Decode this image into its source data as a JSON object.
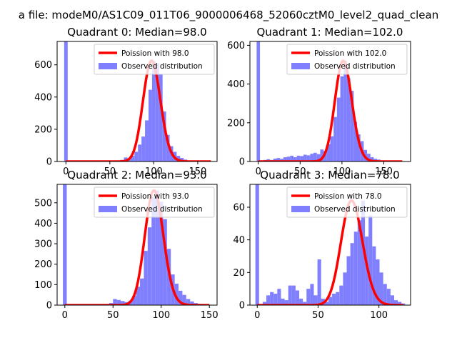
{
  "figure_title": "a file: modeM0/AS1C09_011T06_9000006468_52060cztM0_level2_quad_clean",
  "colors": {
    "histogram": "#8080ff",
    "model": "#ff0000",
    "axes": "#000000",
    "legend_frame": "#cccccc"
  },
  "chart_data": [
    {
      "type": "bar",
      "title": "Quadrant 0: Median=98.0",
      "median": 98.0,
      "xlim": [
        -10,
        172
      ],
      "ylim": [
        0,
        745
      ],
      "xticks": [
        0,
        50,
        100,
        150
      ],
      "yticks": [
        0,
        200,
        400,
        600
      ],
      "xlabel": "",
      "ylabel": "",
      "legend": {
        "position": "top-right",
        "entries": [
          "Poission with 98.0",
          "Observed distribution"
        ]
      },
      "series": [
        {
          "name": "Observed distribution",
          "kind": "histogram",
          "bin_width": 4,
          "bars": [
            [
              -2,
              745
            ],
            [
              30,
              2
            ],
            [
              58,
              5
            ],
            [
              62,
              10
            ],
            [
              66,
              25
            ],
            [
              70,
              20
            ],
            [
              74,
              35
            ],
            [
              78,
              60
            ],
            [
              82,
              105
            ],
            [
              86,
              155
            ],
            [
              90,
              255
            ],
            [
              94,
              445
            ],
            [
              98,
              625
            ],
            [
              102,
              610
            ],
            [
              106,
              540
            ],
            [
              110,
              310
            ],
            [
              114,
              165
            ],
            [
              118,
              95
            ],
            [
              122,
              60
            ],
            [
              126,
              35
            ],
            [
              130,
              22
            ],
            [
              134,
              12
            ],
            [
              138,
              6
            ],
            [
              142,
              3
            ]
          ]
        },
        {
          "name": "Poission with 98.0",
          "kind": "line",
          "mean": 98.0,
          "x_range": [
            0,
            165
          ]
        }
      ]
    },
    {
      "type": "bar",
      "title": "Quadrant 1: Median=102.0",
      "median": 102.0,
      "xlim": [
        -10,
        182
      ],
      "ylim": [
        0,
        620
      ],
      "xticks": [
        0,
        50,
        100,
        150
      ],
      "yticks": [
        0,
        200,
        400,
        600
      ],
      "xlabel": "",
      "ylabel": "",
      "legend": {
        "position": "top-right",
        "entries": [
          "Poission with 102.0",
          "Observed distribution"
        ]
      },
      "series": [
        {
          "name": "Observed distribution",
          "kind": "histogram",
          "bin_width": 4,
          "bars": [
            [
              -2,
              620
            ],
            [
              6,
              8
            ],
            [
              10,
              12
            ],
            [
              14,
              8
            ],
            [
              18,
              15
            ],
            [
              22,
              18
            ],
            [
              26,
              14
            ],
            [
              30,
              22
            ],
            [
              34,
              25
            ],
            [
              38,
              30
            ],
            [
              42,
              22
            ],
            [
              46,
              30
            ],
            [
              50,
              28
            ],
            [
              54,
              35
            ],
            [
              58,
              32
            ],
            [
              62,
              40
            ],
            [
              66,
              45
            ],
            [
              70,
              38
            ],
            [
              74,
              62
            ],
            [
              78,
              55
            ],
            [
              82,
              90
            ],
            [
              86,
              130
            ],
            [
              90,
              230
            ],
            [
              94,
              330
            ],
            [
              98,
              440
            ],
            [
              102,
              520
            ],
            [
              106,
              430
            ],
            [
              110,
              365
            ],
            [
              114,
              205
            ],
            [
              118,
              140
            ],
            [
              122,
              105
            ],
            [
              126,
              60
            ],
            [
              130,
              40
            ],
            [
              134,
              22
            ],
            [
              138,
              14
            ],
            [
              142,
              10
            ],
            [
              146,
              5
            ]
          ]
        },
        {
          "name": "Poission with 102.0",
          "kind": "line",
          "mean": 102.0,
          "x_range": [
            0,
            172
          ]
        }
      ]
    },
    {
      "type": "bar",
      "title": "Quadrant 2: Median=93.0",
      "median": 93.0,
      "xlim": [
        -8,
        158
      ],
      "ylim": [
        0,
        590
      ],
      "xticks": [
        0,
        50,
        100,
        150
      ],
      "yticks": [
        0,
        100,
        200,
        300,
        400,
        500
      ],
      "xlabel": "",
      "ylabel": "",
      "legend": {
        "position": "top-right",
        "entries": [
          "Poission with 93.0",
          "Observed distribution"
        ]
      },
      "series": [
        {
          "name": "Observed distribution",
          "kind": "histogram",
          "bin_width": 4,
          "bars": [
            [
              -2,
              590
            ],
            [
              46,
              10
            ],
            [
              50,
              30
            ],
            [
              54,
              25
            ],
            [
              58,
              20
            ],
            [
              62,
              15
            ],
            [
              66,
              22
            ],
            [
              70,
              45
            ],
            [
              74,
              90
            ],
            [
              78,
              130
            ],
            [
              82,
              265
            ],
            [
              86,
              380
            ],
            [
              90,
              530
            ],
            [
              94,
              560
            ],
            [
              98,
              505
            ],
            [
              102,
              420
            ],
            [
              106,
              275
            ],
            [
              110,
              150
            ],
            [
              114,
              105
            ],
            [
              118,
              70
            ],
            [
              122,
              50
            ],
            [
              126,
              30
            ],
            [
              130,
              18
            ],
            [
              134,
              10
            ],
            [
              138,
              6
            ]
          ]
        },
        {
          "name": "Poission with 93.0",
          "kind": "line",
          "mean": 93.0,
          "x_range": [
            0,
            150
          ]
        }
      ]
    },
    {
      "type": "bar",
      "title": "Quadrant 3: Median=78.0",
      "median": 78.0,
      "xlim": [
        -6,
        126
      ],
      "ylim": [
        0,
        74
      ],
      "xticks": [
        0,
        50,
        100
      ],
      "yticks": [
        0,
        20,
        40,
        60
      ],
      "xlabel": "",
      "ylabel": "",
      "legend": {
        "position": "top-right",
        "entries": [
          "Poission with 78.0",
          "Observed distribution"
        ]
      },
      "series": [
        {
          "name": "Observed distribution",
          "kind": "histogram",
          "bin_width": 3,
          "bars": [
            [
              -1.5,
              74
            ],
            [
              4.5,
              2
            ],
            [
              7.5,
              6
            ],
            [
              10.5,
              8
            ],
            [
              13.5,
              7
            ],
            [
              16.5,
              10
            ],
            [
              19.5,
              4
            ],
            [
              22.5,
              3
            ],
            [
              25.5,
              12
            ],
            [
              28.5,
              12
            ],
            [
              31.5,
              9
            ],
            [
              34.5,
              4
            ],
            [
              37.5,
              2
            ],
            [
              40.5,
              10
            ],
            [
              43.5,
              13
            ],
            [
              46.5,
              6
            ],
            [
              49.5,
              28
            ],
            [
              52.5,
              4
            ],
            [
              55.5,
              2
            ],
            [
              58.5,
              5
            ],
            [
              61.5,
              7
            ],
            [
              64.5,
              8
            ],
            [
              67.5,
              12
            ],
            [
              70.5,
              20
            ],
            [
              73.5,
              30
            ],
            [
              76.5,
              38
            ],
            [
              79.5,
              45
            ],
            [
              82.5,
              52
            ],
            [
              85.5,
              64
            ],
            [
              88.5,
              42
            ],
            [
              91.5,
              55
            ],
            [
              94.5,
              36
            ],
            [
              97.5,
              28
            ],
            [
              100.5,
              20
            ],
            [
              103.5,
              13
            ],
            [
              106.5,
              10
            ],
            [
              109.5,
              6
            ],
            [
              112.5,
              3
            ],
            [
              115.5,
              2
            ],
            [
              118.5,
              1
            ]
          ]
        },
        {
          "name": "Poission with 78.0",
          "kind": "line",
          "mean": 78.0,
          "x_range": [
            0,
            120
          ]
        }
      ]
    }
  ]
}
